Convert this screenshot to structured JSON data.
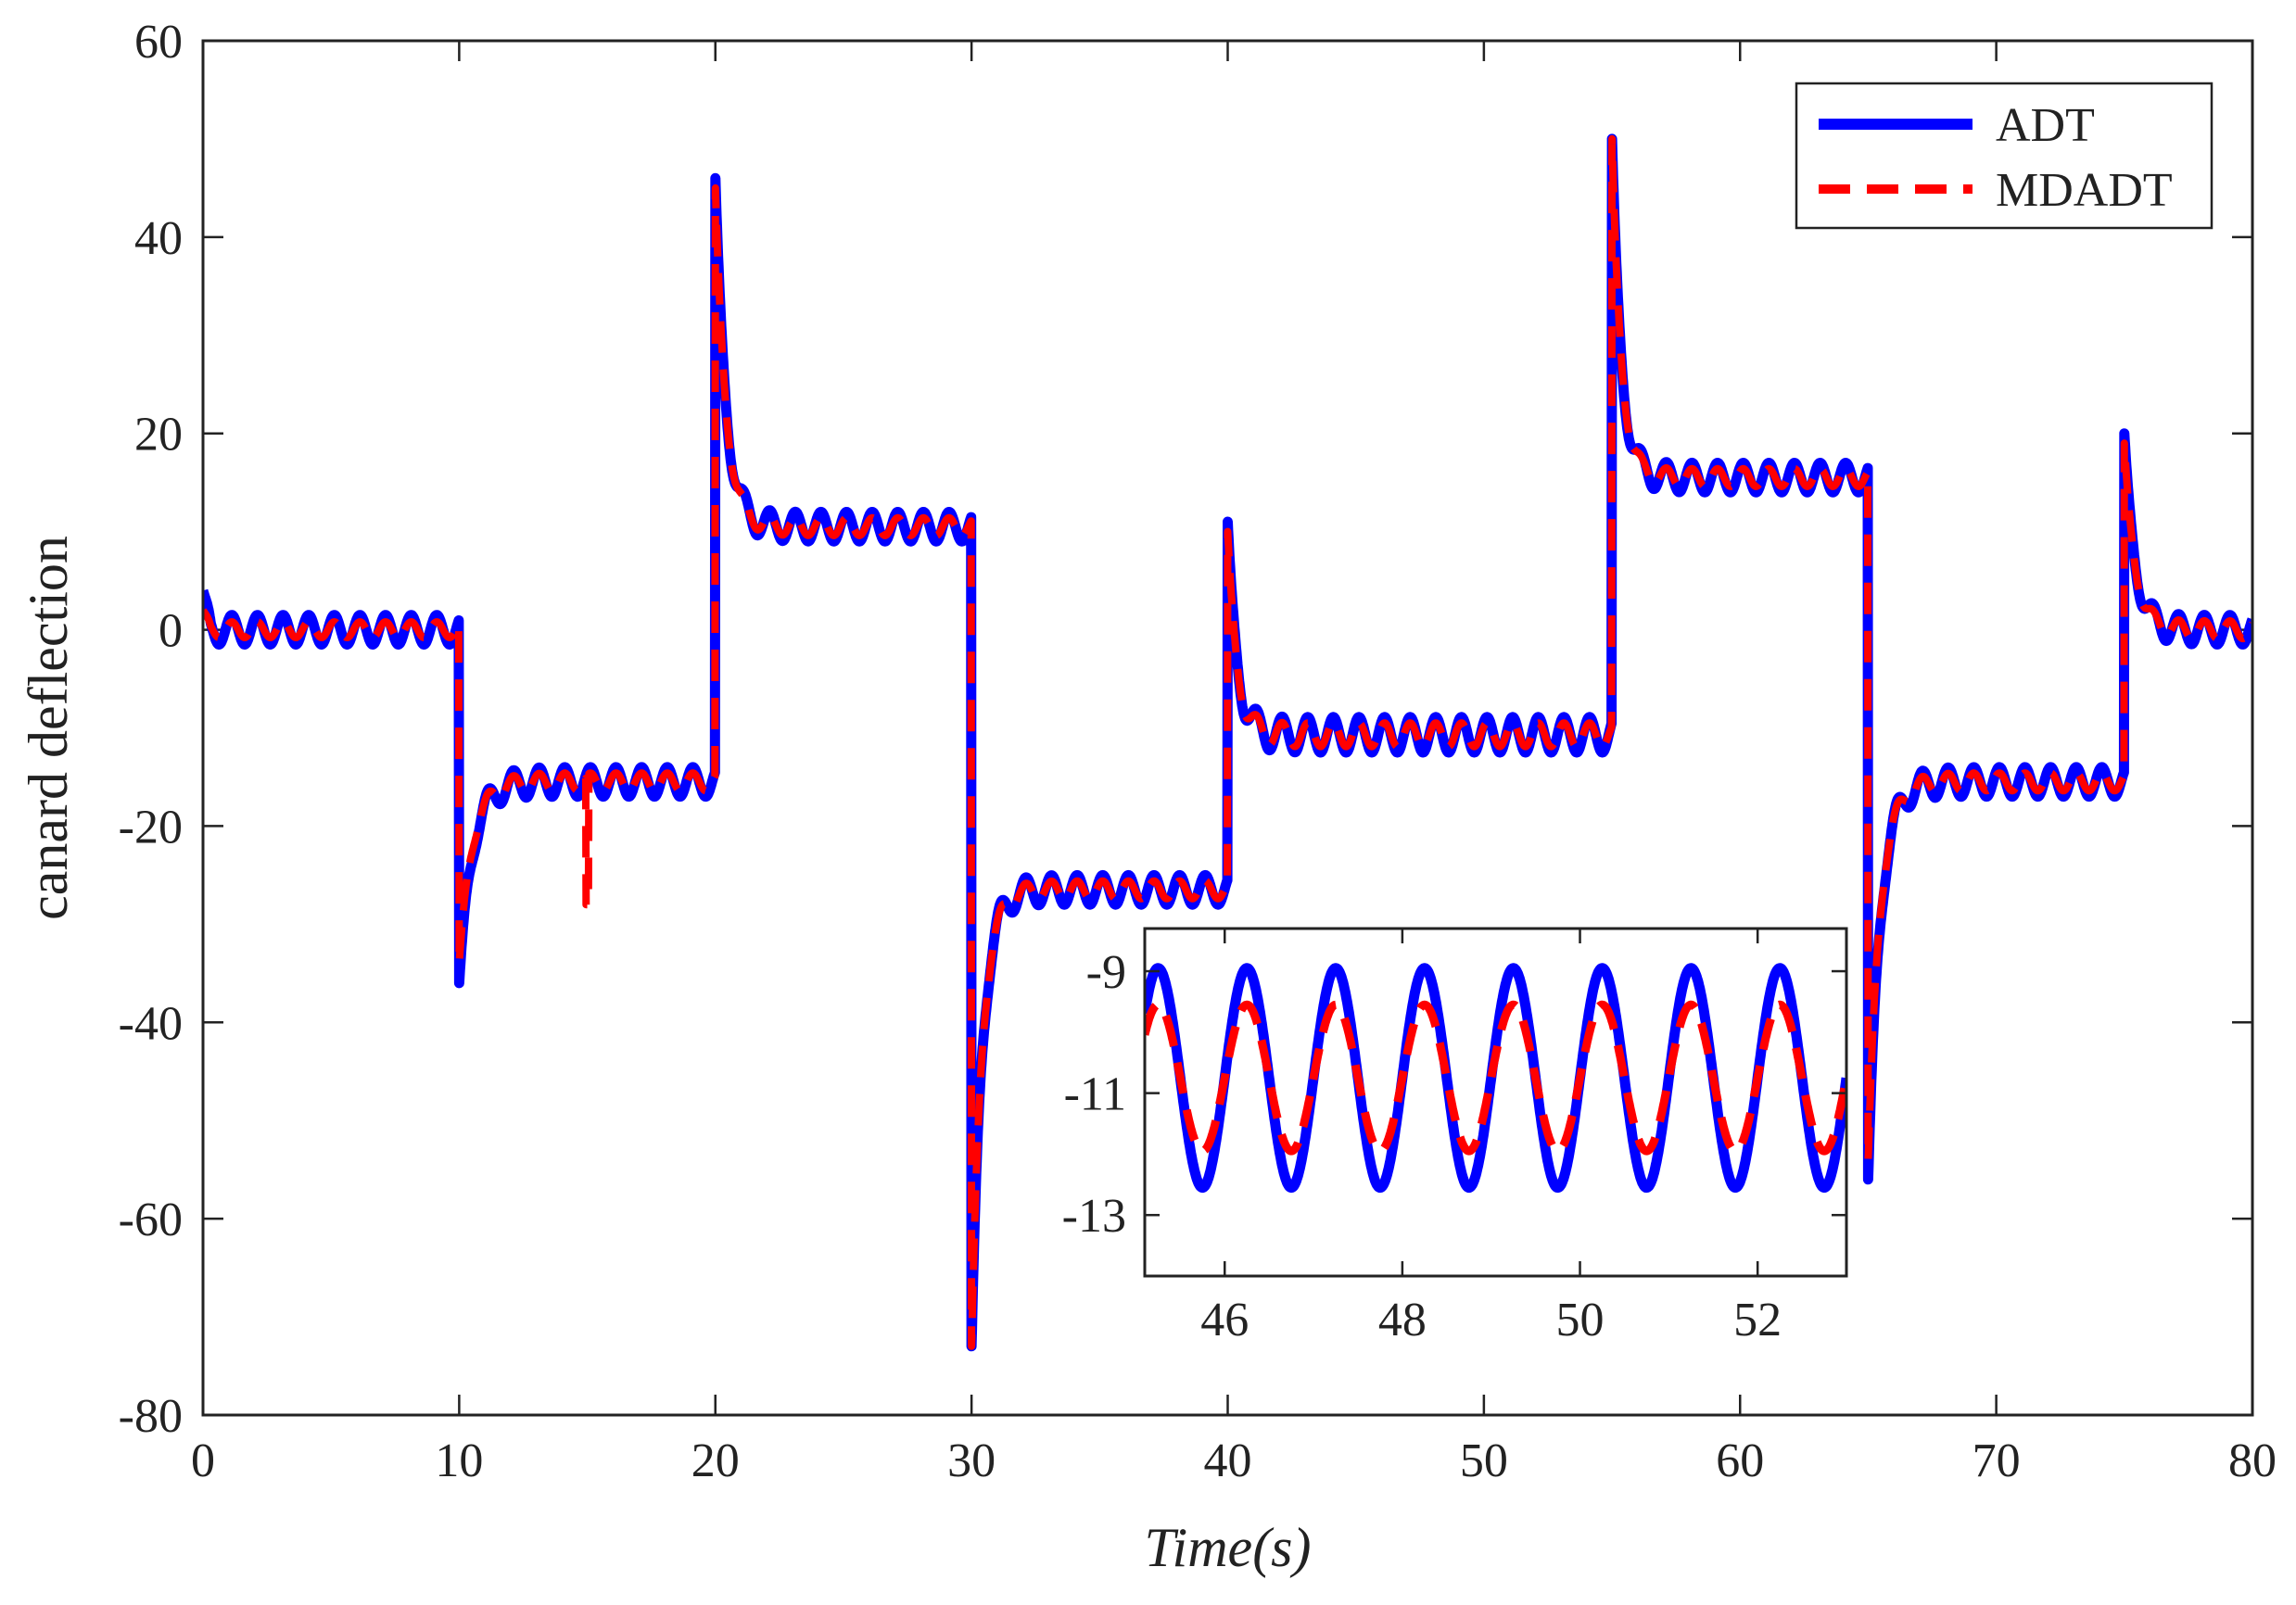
{
  "chart_data": {
    "type": "line",
    "title": "",
    "xlabel": "Time(s)",
    "ylabel": "canard deflection",
    "xlim": [
      0,
      80
    ],
    "ylim": [
      -80,
      60
    ],
    "xticks": [
      0,
      10,
      20,
      30,
      40,
      50,
      60,
      70,
      80
    ],
    "yticks": [
      60,
      40,
      20,
      0,
      -20,
      -40,
      -60,
      -80
    ],
    "legend_position": "top-right",
    "series": [
      {
        "name": "ADT",
        "color": "#0000ff",
        "style": "solid",
        "segments": [
          {
            "start": 0,
            "end": 10,
            "level": 0,
            "amp": 1.5,
            "init": 4
          },
          {
            "start": 10,
            "end": 20,
            "level": -15.5,
            "amp": 1.5,
            "peak": -36,
            "tau": 0.5
          },
          {
            "start": 20,
            "end": 30,
            "level": 10.5,
            "amp": 1.5,
            "peak": 46,
            "tau": 0.4
          },
          {
            "start": 30,
            "end": 40,
            "level": -26.5,
            "amp": 1.5,
            "peak": -73,
            "tau": 0.4
          },
          {
            "start": 40,
            "end": 55,
            "level": -10.7,
            "amp": 1.8,
            "peak": 11,
            "tau": 0.35
          },
          {
            "start": 55,
            "end": 65,
            "level": 15.5,
            "amp": 1.5,
            "peak": 50,
            "tau": 0.35
          },
          {
            "start": 65,
            "end": 75,
            "level": -15.5,
            "amp": 1.5,
            "peak": -56,
            "tau": 0.45
          },
          {
            "start": 75,
            "end": 80,
            "level": 0,
            "amp": 1.5,
            "peak": 20,
            "tau": 0.4
          }
        ]
      },
      {
        "name": "MDADT",
        "color": "#ff0000",
        "style": "dashed",
        "segments": [
          {
            "start": 0,
            "end": 10,
            "level": 0,
            "amp": 0.8,
            "init": 2
          },
          {
            "start": 10,
            "end": 20,
            "level": -15.5,
            "amp": 0.9,
            "peak": -34,
            "tau": 0.5,
            "spike_t": 15,
            "spike_v": -28
          },
          {
            "start": 20,
            "end": 30,
            "level": 10.5,
            "amp": 0.9,
            "peak": 45,
            "tau": 0.4
          },
          {
            "start": 30,
            "end": 40,
            "level": -26.5,
            "amp": 0.9,
            "peak": -73,
            "tau": 0.4
          },
          {
            "start": 40,
            "end": 55,
            "level": -10.7,
            "amp": 1.2,
            "peak": 10,
            "tau": 0.35
          },
          {
            "start": 55,
            "end": 65,
            "level": 15.5,
            "amp": 0.9,
            "peak": 50,
            "tau": 0.35
          },
          {
            "start": 65,
            "end": 75,
            "level": -15.5,
            "amp": 0.9,
            "peak": -54,
            "tau": 0.45
          },
          {
            "start": 75,
            "end": 80,
            "level": 0,
            "amp": 0.9,
            "peak": 19,
            "tau": 0.4
          }
        ]
      }
    ],
    "inset": {
      "xlim": [
        45.1,
        53
      ],
      "ylim": [
        -14,
        -8.3
      ],
      "xticks": [
        46,
        48,
        50,
        52
      ],
      "yticks": [
        -9,
        -11,
        -13
      ],
      "series": [
        {
          "name": "ADT",
          "color": "#0000ff",
          "center": -10.75,
          "amp": 1.8,
          "period": 1.0,
          "peak_time": 46.25
        },
        {
          "name": "MDADT",
          "color": "#ff0000",
          "center": -10.75,
          "amp": 1.2,
          "period": 1.0,
          "peak_time": 46.25
        }
      ]
    }
  }
}
